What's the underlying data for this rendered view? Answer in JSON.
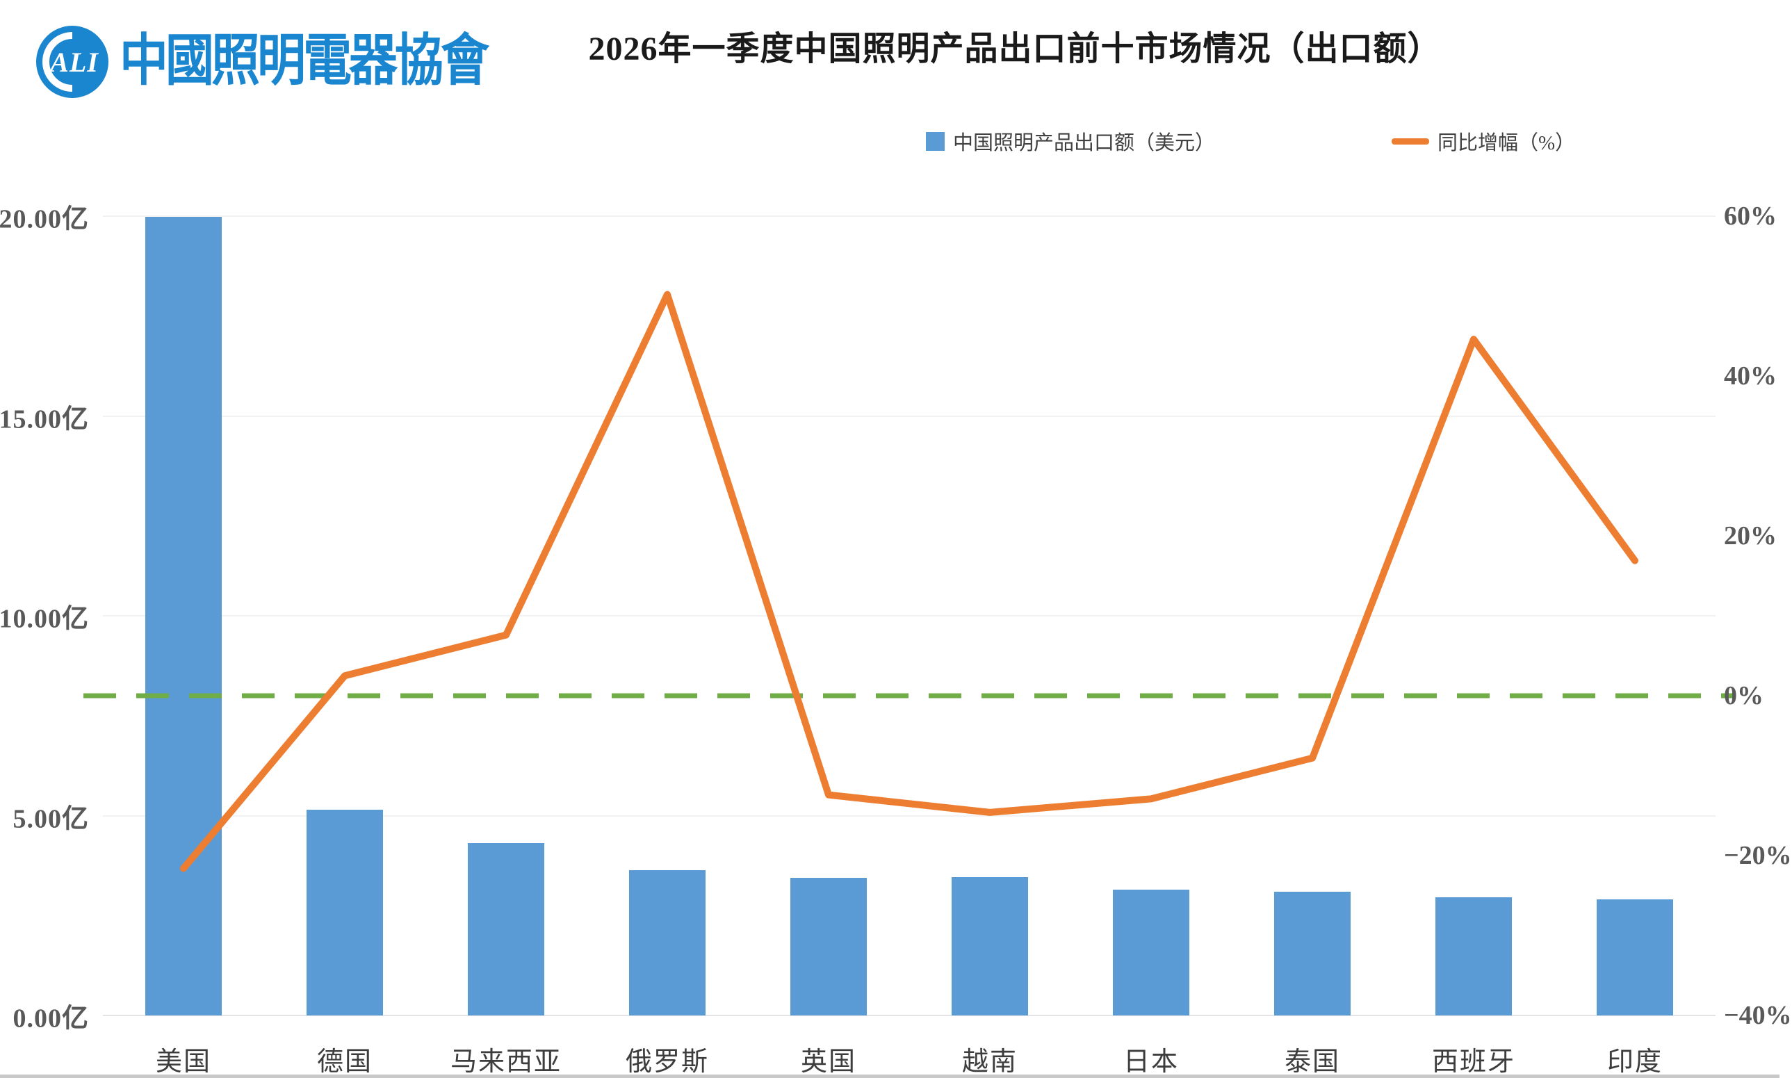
{
  "header": {
    "logo": {
      "acronym": "ALI",
      "cn_name": "中國照明電器協會",
      "color": "#1b86d0"
    },
    "title": "2026年一季度中国照明产品出口前十市场情况（出口额）"
  },
  "legend": [
    {
      "label": "中国照明产品出口额（美元）",
      "swatch": "square",
      "color": "#5B9BD5"
    },
    {
      "label": "同比增幅（%）",
      "swatch": "line",
      "color": "#ED7D31"
    }
  ],
  "chart_data": {
    "type": "bar",
    "subtype": "combo-bar-line-dual-axis",
    "title": "2026年一季度中国照明产品出口前十市场情况（出口额）",
    "categories": [
      "美国",
      "德国",
      "马来西亚",
      "俄罗斯",
      "英国",
      "越南",
      "日本",
      "泰国",
      "西班牙",
      "印度"
    ],
    "series": [
      {
        "name": "中国照明产品出口额（美元）",
        "type": "bar",
        "axis": "left",
        "unit": "亿",
        "color": "#5B9BD5",
        "values": [
          19.98,
          5.15,
          4.31,
          3.64,
          3.45,
          3.46,
          3.14,
          3.1,
          2.95,
          2.9
        ]
      },
      {
        "name": "同比增幅（%）",
        "type": "line",
        "axis": "right",
        "unit": "%",
        "color": "#ED7D31",
        "values": [
          -21.6,
          2.5,
          7.6,
          50.2,
          -12.4,
          -14.6,
          -12.9,
          -7.8,
          44.6,
          16.9
        ]
      }
    ],
    "left_axis": {
      "min": 0,
      "max": 20,
      "tick_values": [
        0,
        5,
        10,
        15,
        20
      ],
      "tick_labels": [
        "0.00亿",
        "5.00亿",
        "10.00亿",
        "15.00亿",
        "20.00亿"
      ]
    },
    "right_axis": {
      "min": -40,
      "max": 60,
      "tick_values": [
        -40,
        -20,
        0,
        20,
        40,
        60
      ],
      "tick_labels": [
        "−40%",
        "−20%",
        "0%",
        "20%",
        "40%",
        "60%"
      ]
    },
    "zero_growth_line": {
      "value": 0,
      "axis": "right",
      "style": "dashed",
      "color": "#70AD47"
    },
    "grid": "horizontal-left-axis-ticks",
    "legend_position": "top"
  },
  "colors": {
    "bar": "#5B9BD5",
    "line": "#ED7D31",
    "zero_line": "#70AD47",
    "axis_text": "#595959",
    "category_text": "#3d3d3d",
    "title_text": "#1a1a1a",
    "logo_blue": "#1b86d0",
    "gridline": "#f2f2f2"
  }
}
